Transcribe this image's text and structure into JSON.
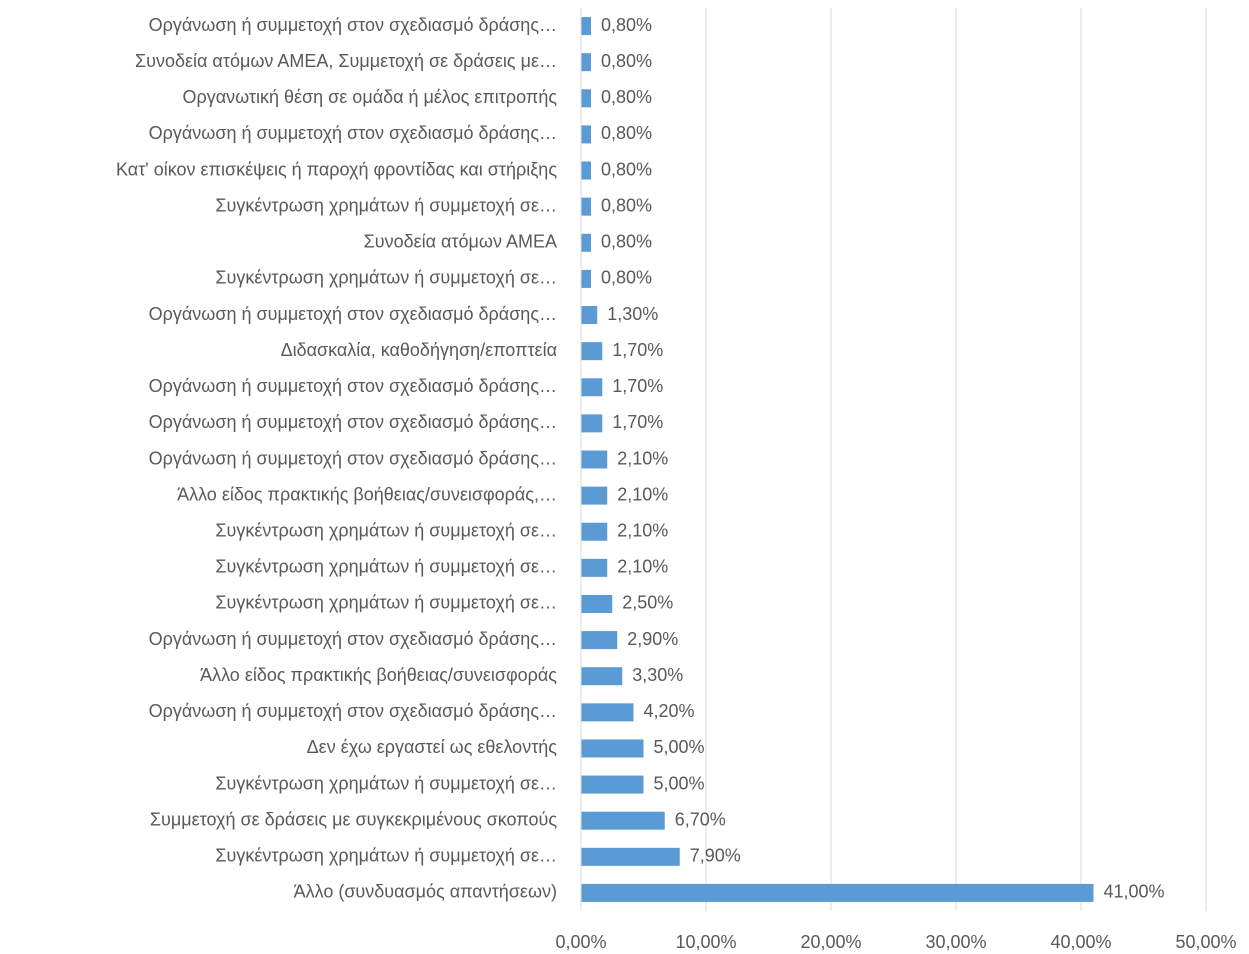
{
  "chart_data": {
    "type": "bar",
    "orientation": "horizontal",
    "categories": [
      "Οργάνωση ή συμμετοχή στον σχεδιασμό δράσης…",
      "Συνοδεία ατόμων ΑΜΕΑ, Συμμετοχή σε δράσεις με…",
      "Οργανωτική θέση σε ομάδα ή μέλος επιτροπής",
      "Οργάνωση ή συμμετοχή στον σχεδιασμό δράσης…",
      "Κατ' οίκον επισκέψεις ή παροχή φροντίδας και στήριξης",
      "Συγκέντρωση χρημάτων ή συμμετοχή σε…",
      "Συνοδεία ατόμων ΑΜΕΑ",
      "Συγκέντρωση χρημάτων ή συμμετοχή σε…",
      "Οργάνωση ή συμμετοχή στον σχεδιασμό δράσης…",
      "Διδασκαλία, καθοδήγηση/εποπτεία",
      "Οργάνωση ή συμμετοχή στον σχεδιασμό δράσης…",
      "Οργάνωση ή συμμετοχή στον σχεδιασμό δράσης…",
      "Οργάνωση ή συμμετοχή στον σχεδιασμό δράσης…",
      "Άλλο είδος πρακτικής βοήθειας/συνεισφοράς,…",
      "Συγκέντρωση χρημάτων ή συμμετοχή σε…",
      "Συγκέντρωση χρημάτων ή συμμετοχή σε…",
      "Συγκέντρωση χρημάτων ή συμμετοχή σε…",
      "Οργάνωση ή συμμετοχή στον σχεδιασμό δράσης…",
      "Άλλο είδος πρακτικής βοήθειας/συνεισφοράς",
      "Οργάνωση ή συμμετοχή στον σχεδιασμό δράσης…",
      "Δεν έχω εργαστεί ως εθελοντής",
      "Συγκέντρωση χρημάτων ή συμμετοχή σε…",
      "Συμμετοχή σε δράσεις με συγκεκριμένους σκοπούς",
      "Συγκέντρωση χρημάτων ή συμμετοχή σε…",
      "Άλλο (συνδυασμός απαντήσεων)"
    ],
    "values": [
      0.8,
      0.8,
      0.8,
      0.8,
      0.8,
      0.8,
      0.8,
      0.8,
      1.3,
      1.7,
      1.7,
      1.7,
      2.1,
      2.1,
      2.1,
      2.1,
      2.5,
      2.9,
      3.3,
      4.2,
      5.0,
      5.0,
      6.7,
      7.9,
      41.0
    ],
    "value_labels": [
      "0,80%",
      "0,80%",
      "0,80%",
      "0,80%",
      "0,80%",
      "0,80%",
      "0,80%",
      "0,80%",
      "1,30%",
      "1,70%",
      "1,70%",
      "1,70%",
      "2,10%",
      "2,10%",
      "2,10%",
      "2,10%",
      "2,50%",
      "2,90%",
      "3,30%",
      "4,20%",
      "5,00%",
      "5,00%",
      "6,70%",
      "7,90%",
      "41,00%"
    ],
    "color": "#5b9bd5",
    "xlim": [
      0,
      50
    ],
    "xticks": [
      {
        "value": 0,
        "label": "0,00%"
      },
      {
        "value": 10,
        "label": "10,00%"
      },
      {
        "value": 20,
        "label": "20,00%"
      },
      {
        "value": 30,
        "label": "30,00%"
      },
      {
        "value": 40,
        "label": "40,00%"
      },
      {
        "value": 50,
        "label": "50,00%"
      }
    ],
    "grid": true
  }
}
